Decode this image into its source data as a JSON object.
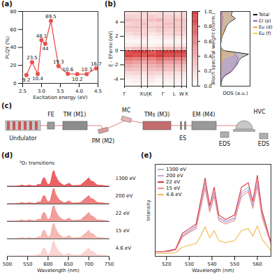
{
  "chart_data": [
    {
      "type": "line",
      "panel_label": "(a)",
      "x_label": "Excitation energy (eV)",
      "y_label": "PLQY (%)",
      "x": [
        2.6,
        2.75,
        2.9,
        3.0,
        3.1,
        3.25,
        3.45,
        3.7,
        3.95,
        4.2,
        4.45
      ],
      "values": [
        9.2,
        23.5,
        10.4,
        48.1,
        44,
        69.5,
        19.3,
        10.6,
        10.2,
        10.3,
        16.7
      ],
      "color": "#e8534f",
      "marker": "circle",
      "data_labels": true,
      "xlim": [
        2.5,
        4.5
      ],
      "xticks": [
        2.5,
        {
          "value": 3,
          "label": "3.0"
        },
        3.5,
        {
          "value": 4,
          "label": "4.0"
        },
        4.5
      ],
      "ylim": [
        0,
        80
      ],
      "yticks": [
        0,
        20,
        40,
        60,
        80
      ]
    },
    {
      "type": "heatmap",
      "panel_label": "(b)",
      "y_label": "E - EFermi (eV)",
      "x_edges": [
        0,
        0.135,
        0.27,
        0.37,
        0.5,
        0.62,
        0.8,
        0.92,
        1
      ],
      "y_edges": [
        -5,
        -4.5,
        -4,
        -3.5,
        -3,
        -2.5,
        -2,
        -1.5,
        -1,
        -0.5,
        0,
        0.5,
        1,
        1.5,
        2,
        2.5,
        3,
        3.5,
        4,
        4.5,
        5,
        5.5
      ],
      "values": [
        [
          0.03,
          0.05,
          0.04,
          0.06,
          0.03,
          0.05,
          0.04,
          0.03
        ],
        [
          0.05,
          0.08,
          0.06,
          0.1,
          0.05,
          0.07,
          0.06,
          0.05
        ],
        [
          0.1,
          0.12,
          0.08,
          0.15,
          0.1,
          0.12,
          0.1,
          0.08
        ],
        [
          0.18,
          0.2,
          0.15,
          0.22,
          0.2,
          0.18,
          0.15,
          0.14
        ],
        [
          0.3,
          0.28,
          0.25,
          0.3,
          0.32,
          0.3,
          0.26,
          0.25
        ],
        [
          0.4,
          0.35,
          0.3,
          0.38,
          0.42,
          0.36,
          0.33,
          0.3
        ],
        [
          0.5,
          0.45,
          0.42,
          0.48,
          0.55,
          0.46,
          0.44,
          0.42
        ],
        [
          0.65,
          0.6,
          0.55,
          0.6,
          0.7,
          0.62,
          0.58,
          0.56
        ],
        [
          0.9,
          0.85,
          0.8,
          0.88,
          0.95,
          0.86,
          0.82,
          0.8
        ],
        [
          0.85,
          0.9,
          0.88,
          0.8,
          0.9,
          0.92,
          0.9,
          0.88
        ],
        [
          0.25,
          0.3,
          0.28,
          0.2,
          0.25,
          0.3,
          0.28,
          0.3
        ],
        [
          0.08,
          0.1,
          0.1,
          0.06,
          0.08,
          0.1,
          0.1,
          0.1
        ],
        [
          0.04,
          0.05,
          0.06,
          0.03,
          0.04,
          0.05,
          0.06,
          0.05
        ],
        [
          0.08,
          0.1,
          0.12,
          0.06,
          0.08,
          0.12,
          0.1,
          0.1
        ],
        [
          0.15,
          0.2,
          0.22,
          0.12,
          0.15,
          0.2,
          0.22,
          0.2
        ],
        [
          0.22,
          0.25,
          0.2,
          0.18,
          0.25,
          0.22,
          0.25,
          0.22
        ],
        [
          0.28,
          0.3,
          0.25,
          0.25,
          0.3,
          0.28,
          0.3,
          0.28
        ],
        [
          0.2,
          0.25,
          0.3,
          0.2,
          0.22,
          0.3,
          0.25,
          0.25
        ],
        [
          0.3,
          0.28,
          0.25,
          0.3,
          0.35,
          0.25,
          0.3,
          0.28
        ],
        [
          0.22,
          0.2,
          0.18,
          0.25,
          0.2,
          0.22,
          0.2,
          0.2
        ],
        [
          0.15,
          0.18,
          0.2,
          0.15,
          0.18,
          0.16,
          0.15,
          0.18
        ]
      ],
      "xlim": [
        0,
        1
      ],
      "xticks": [
        {
          "value": 0,
          "label": "Γ"
        },
        {
          "value": 0.27,
          "label": "X"
        },
        {
          "value": 0.37,
          "label": "U|K"
        },
        {
          "value": 0.62,
          "label": "Γ"
        },
        {
          "value": 0.8,
          "label": "L"
        },
        {
          "value": 0.92,
          "label": "W"
        },
        {
          "value": 1,
          "label": "X"
        }
      ],
      "ylim": [
        -5,
        5.5
      ],
      "yticks": [
        -4,
        -2,
        0,
        2,
        4
      ],
      "reference_line": {
        "y": 0,
        "line_style": "dashed"
      },
      "color": "#d62f2f",
      "colorbar": {
        "label": "Bloch spectral weight (norm.)",
        "range": [
          0,
          1
        ],
        "ticks": [
          {
            "value": 0,
            "label": "0.0"
          },
          {
            "value": 0.2,
            "label": "0.2"
          },
          {
            "value": 0.4,
            "label": "0.4"
          },
          {
            "value": 0.6,
            "label": "0.6"
          },
          {
            "value": 0.8,
            "label": "0.8"
          },
          {
            "value": 1,
            "label": "1.0"
          }
        ]
      }
    },
    {
      "type": "line",
      "x_label": "DOS (a.u.)",
      "tick_labels": false,
      "legend": "right",
      "y": [
        -5,
        -4.5,
        -4,
        -3.5,
        -3,
        -2.5,
        -2,
        -1.5,
        -1,
        -0.5,
        0,
        0.5,
        1,
        1.5,
        2,
        2.5,
        3,
        3.5,
        4,
        4.5,
        5,
        5.5
      ],
      "xlim": [
        0,
        1
      ],
      "ylim": [
        -5,
        5.5
      ],
      "series": [
        {
          "name": "Total",
          "color": "#111111",
          "values": [
            0,
            0.02,
            0.05,
            0.15,
            0.35,
            0.45,
            0.55,
            0.6,
            0.7,
            0.95,
            0.1,
            0,
            0,
            0.02,
            0.05,
            0.1,
            0.15,
            0.2,
            0.3,
            0.5,
            0.35,
            0.4
          ]
        },
        {
          "name": "Cl (p)",
          "color": "#a05cc8",
          "values": [
            0,
            0.01,
            0.04,
            0.12,
            0.3,
            0.4,
            0.5,
            0.55,
            0.6,
            0.5,
            0.02,
            0,
            0,
            0,
            0.01,
            0.02,
            0.03,
            0.05,
            0.05,
            0.08,
            0.05,
            0.05
          ]
        },
        {
          "name": "Eu (d)",
          "color": "#f39c4b",
          "values": [
            0,
            0,
            0.01,
            0.02,
            0.03,
            0.03,
            0.04,
            0.04,
            0.05,
            0.05,
            0.02,
            0,
            0,
            0.02,
            0.04,
            0.08,
            0.12,
            0.15,
            0.22,
            0.4,
            0.25,
            0.3
          ]
        },
        {
          "name": "Eu (f)",
          "color": "#f2d13c",
          "values": [
            0,
            0,
            0,
            0,
            0,
            0,
            0,
            0.02,
            0.1,
            0.45,
            0.05,
            0,
            0,
            0,
            0,
            0,
            0,
            0,
            0,
            0,
            0,
            0
          ]
        }
      ]
    },
    {
      "type": "area",
      "panel_label": "(d)",
      "x_label": "Wavelength (nm)",
      "annotation": "⁵D₁ transitions",
      "tick_labels": "x",
      "x": [
        500,
        520,
        530,
        537,
        540,
        545,
        553,
        556,
        560,
        570,
        578,
        582,
        588,
        592,
        596,
        600,
        606,
        612,
        615,
        618,
        622,
        628,
        640,
        648,
        652,
        660,
        680,
        690,
        695,
        700,
        705,
        712,
        720,
        750
      ],
      "xlim": [
        500,
        750
      ],
      "xticks": [
        500,
        550,
        600,
        650,
        700,
        750
      ],
      "ylim": [
        0,
        1.05
      ],
      "series": [
        {
          "name": "1300 eV",
          "color": "#e8474a",
          "values": [
            0.02,
            0.02,
            0.04,
            0.1,
            0.06,
            0.04,
            0.08,
            0.1,
            0.05,
            0.04,
            0.15,
            0.08,
            0.5,
            0.55,
            0.3,
            0.1,
            0.2,
            0.9,
            1.0,
            0.7,
            0.5,
            0.25,
            0.06,
            0.15,
            0.2,
            0.05,
            0.08,
            0.3,
            0.4,
            0.55,
            0.35,
            0.3,
            0.1,
            0.02
          ]
        },
        {
          "name": "200 eV",
          "color": "#ec6a68",
          "values": [
            0.02,
            0.02,
            0.04,
            0.09,
            0.06,
            0.04,
            0.07,
            0.09,
            0.05,
            0.04,
            0.14,
            0.08,
            0.48,
            0.53,
            0.29,
            0.1,
            0.2,
            0.88,
            0.98,
            0.68,
            0.48,
            0.24,
            0.06,
            0.14,
            0.19,
            0.05,
            0.08,
            0.29,
            0.39,
            0.53,
            0.34,
            0.29,
            0.1,
            0.02
          ]
        },
        {
          "name": "22 eV",
          "color": "#f08d88",
          "values": [
            0.02,
            0.02,
            0.04,
            0.1,
            0.06,
            0.04,
            0.08,
            0.1,
            0.05,
            0.04,
            0.15,
            0.08,
            0.52,
            0.56,
            0.31,
            0.1,
            0.21,
            0.92,
            1.0,
            0.72,
            0.5,
            0.25,
            0.06,
            0.15,
            0.2,
            0.05,
            0.08,
            0.31,
            0.41,
            0.56,
            0.36,
            0.3,
            0.1,
            0.02
          ]
        },
        {
          "name": "15 eV",
          "color": "#f4aea8",
          "values": [
            0.02,
            0.02,
            0.03,
            0.08,
            0.05,
            0.03,
            0.07,
            0.08,
            0.04,
            0.04,
            0.14,
            0.08,
            0.5,
            0.54,
            0.3,
            0.1,
            0.2,
            0.9,
            0.98,
            0.7,
            0.49,
            0.25,
            0.06,
            0.15,
            0.2,
            0.05,
            0.08,
            0.3,
            0.4,
            0.54,
            0.35,
            0.3,
            0.1,
            0.02
          ]
        },
        {
          "name": "4.6 eV",
          "color": "#f8cdc8",
          "values": [
            0.02,
            0.02,
            0.02,
            0.04,
            0.03,
            0.02,
            0.03,
            0.04,
            0.03,
            0.03,
            0.13,
            0.07,
            0.48,
            0.52,
            0.28,
            0.09,
            0.19,
            0.88,
            0.96,
            0.68,
            0.48,
            0.24,
            0.05,
            0.14,
            0.19,
            0.05,
            0.07,
            0.28,
            0.38,
            0.52,
            0.33,
            0.28,
            0.09,
            0.02
          ]
        }
      ]
    },
    {
      "type": "line",
      "panel_label": "(e)",
      "x_label": "Wavelength (nm)",
      "y_label": "Intensity",
      "tick_labels": "x",
      "legend": "top-left",
      "x": [
        515,
        518,
        521,
        524,
        527,
        530,
        533,
        535,
        537,
        539,
        541,
        543,
        546,
        550,
        553,
        556,
        558,
        560,
        562,
        566
      ],
      "xlim": [
        515,
        566
      ],
      "xticks": [
        520,
        530,
        540,
        550,
        560
      ],
      "ylim": [
        0,
        1
      ],
      "series": [
        {
          "name": "1300 eV",
          "color": "#a9b8d6",
          "values": [
            0.05,
            0.05,
            0.06,
            0.08,
            0.23,
            0.28,
            0.33,
            0.56,
            0.8,
            0.52,
            0.7,
            0.42,
            0.38,
            0.42,
            0.7,
            0.75,
            0.56,
            0.82,
            0.47,
            0.14
          ]
        },
        {
          "name": "200 eV",
          "color": "#c7a6d8",
          "values": [
            0.05,
            0.05,
            0.06,
            0.07,
            0.22,
            0.27,
            0.32,
            0.54,
            0.77,
            0.5,
            0.68,
            0.41,
            0.37,
            0.41,
            0.68,
            0.72,
            0.54,
            0.8,
            0.45,
            0.14
          ]
        },
        {
          "name": "22 eV",
          "color": "#d9323a",
          "values": [
            0.05,
            0.05,
            0.06,
            0.08,
            0.25,
            0.3,
            0.35,
            0.6,
            0.85,
            0.55,
            0.75,
            0.45,
            0.4,
            0.45,
            0.75,
            0.8,
            0.6,
            0.88,
            0.5,
            0.15
          ]
        },
        {
          "name": "15 eV",
          "color": "#f08d8d",
          "values": [
            0.05,
            0.05,
            0.05,
            0.07,
            0.21,
            0.26,
            0.3,
            0.52,
            0.74,
            0.48,
            0.65,
            0.39,
            0.35,
            0.39,
            0.65,
            0.7,
            0.52,
            0.76,
            0.43,
            0.13
          ]
        },
        {
          "name": "4.6 eV",
          "color": "#f2b84b",
          "values": [
            0.03,
            0.03,
            0.03,
            0.04,
            0.1,
            0.12,
            0.14,
            0.22,
            0.32,
            0.2,
            0.28,
            0.17,
            0.15,
            0.17,
            0.28,
            0.3,
            0.22,
            0.33,
            0.19,
            0.06
          ]
        }
      ]
    }
  ],
  "diagram": {
    "panel_label": "(c)",
    "components": [
      "Undulator",
      "FE",
      "TM (M1)",
      "PM (M2)",
      "MC",
      "TMs (M3)",
      "ES",
      "EM (M4)",
      "HVC",
      "EDS",
      "EDS"
    ]
  }
}
